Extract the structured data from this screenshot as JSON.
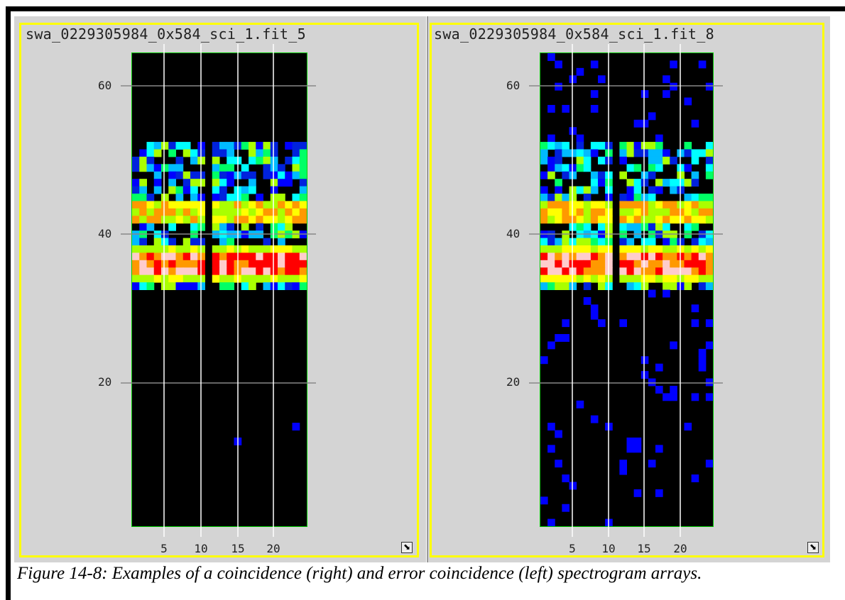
{
  "panels": [
    {
      "title": "swa_0229305984_0x584_sci_1.fit_5",
      "y_ticks": [
        "60",
        "40",
        "20"
      ],
      "x_ticks": [
        "5",
        "10",
        "15",
        "20"
      ]
    },
    {
      "title": "swa_0229305984_0x584_sci_1.fit_8",
      "y_ticks": [
        "60",
        "40",
        "20"
      ],
      "x_ticks": [
        "5",
        "10",
        "15",
        "20"
      ]
    }
  ],
  "caption": "Figure 14-8: Examples of a coincidence (right) and error coincidence (left) spectrogram arrays.",
  "colors": {
    "frame": "#ffff00",
    "plot_border": "#00cc00",
    "background": "#d4d4d4"
  },
  "icons": [
    "resize-icon"
  ]
}
